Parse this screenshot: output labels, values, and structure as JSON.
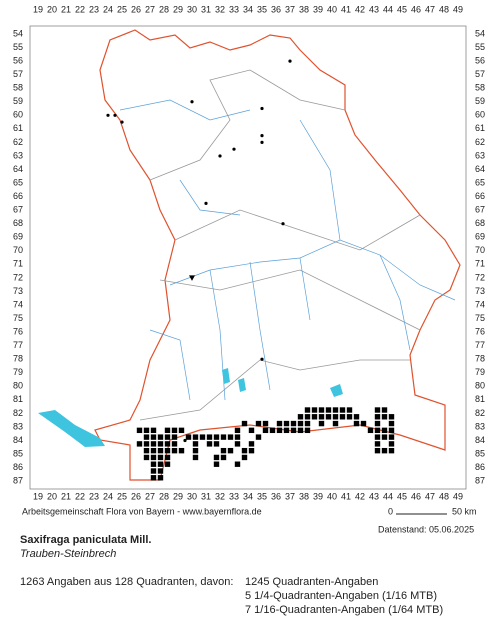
{
  "columns": [
    19,
    20,
    21,
    22,
    23,
    24,
    25,
    26,
    27,
    28,
    29,
    30,
    31,
    32,
    33,
    34,
    35,
    36,
    37,
    38,
    39,
    40,
    41,
    42,
    43,
    44,
    45,
    46,
    47,
    48,
    49
  ],
  "rows": [
    54,
    55,
    56,
    57,
    58,
    59,
    60,
    61,
    62,
    63,
    64,
    65,
    66,
    67,
    68,
    69,
    70,
    71,
    72,
    73,
    74,
    75,
    76,
    77,
    78,
    79,
    80,
    81,
    82,
    83,
    84,
    85,
    86,
    87
  ],
  "occurrences": [
    {
      "row": 81.75,
      "cols": [
        38.25,
        38.75,
        39.25,
        39.75,
        40.25,
        40.75,
        41.25,
        43.25,
        43.75
      ]
    },
    {
      "row": 82.25,
      "cols": [
        37.75,
        38.25,
        38.75,
        39.25,
        39.75,
        40.25,
        40.75,
        41.25,
        41.75,
        43.25,
        43.75,
        44.25
      ]
    },
    {
      "row": 82.75,
      "cols": [
        33.75,
        34.75,
        35.25,
        36.25,
        36.75,
        37.25,
        37.75,
        38.25,
        39.25,
        40.25,
        41.75,
        42.25,
        43.25,
        44.25
      ]
    },
    {
      "row": 83.25,
      "cols": [
        26.25,
        26.75,
        27.25,
        28.25,
        28.75,
        29.25,
        33.25,
        34.25,
        35.25,
        35.75,
        36.25,
        36.75,
        37.25,
        37.75,
        38.25,
        42.75,
        43.25,
        43.75,
        44.25
      ]
    },
    {
      "row": 83.75,
      "cols": [
        26.75,
        27.25,
        27.75,
        28.25,
        28.75,
        29.75,
        30.25,
        30.75,
        31.25,
        31.75,
        32.25,
        32.75,
        33.25,
        34.75,
        43.25,
        43.75,
        44.25
      ]
    },
    {
      "row": 84.25,
      "cols": [
        26.25,
        26.75,
        27.25,
        27.75,
        28.25,
        28.75,
        30.25,
        31.25,
        31.75,
        33.25,
        34.25,
        43.25,
        44.25
      ]
    },
    {
      "row": 84.75,
      "cols": [
        26.75,
        27.25,
        27.75,
        28.25,
        28.75,
        29.25,
        30.25,
        32.25,
        32.75,
        33.75,
        34.25,
        43.25,
        43.75,
        44.25
      ]
    },
    {
      "row": 85.25,
      "cols": [
        26.75,
        27.25,
        27.75,
        28.25,
        30.25,
        31.75,
        32.25,
        33.75
      ]
    },
    {
      "row": 85.75,
      "cols": [
        27.25,
        27.75,
        28.25,
        31.75,
        33.25
      ]
    },
    {
      "row": 86.25,
      "cols": [
        27.25,
        27.75
      ]
    },
    {
      "row": 86.75,
      "cols": [
        27.25,
        27.75
      ]
    }
  ],
  "points": [
    [
      37,
      56
    ],
    [
      24,
      60
    ],
    [
      24.5,
      60
    ],
    [
      25,
      60.5
    ],
    [
      30,
      59
    ],
    [
      35,
      59.5
    ],
    [
      35,
      61.5
    ],
    [
      35,
      62
    ],
    [
      33,
      62.5
    ],
    [
      32,
      63
    ],
    [
      31,
      66.5
    ],
    [
      36.5,
      68
    ],
    [
      35,
      78
    ],
    [
      29.5,
      84
    ]
  ],
  "triangles": [
    [
      30,
      72
    ]
  ],
  "credit": "Arbeitsgemeinschaft Flora von Bayern - www.bayernflora.de",
  "scale": {
    "start": "0",
    "end": "50 km"
  },
  "date": "Datenstand: 05.06.2025",
  "title": "Saxifraga paniculata Mill.",
  "common_name": "Trauben-Steinbrech",
  "summary": "1263 Angaben aus 128 Quadranten, davon:",
  "counts": [
    "1245 Quadranten-Angaben",
    "5 1/4-Quadranten-Angaben (1/16 MTB)",
    "7 1/16-Quadranten-Angaben (1/64 MTB)"
  ]
}
